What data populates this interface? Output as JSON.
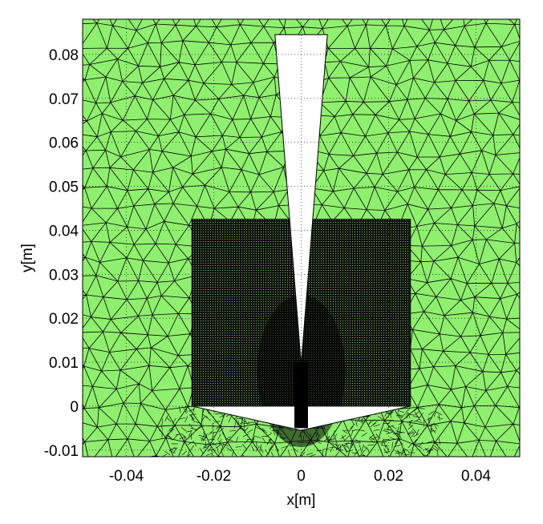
{
  "chart_data": {
    "type": "mesh",
    "title": "",
    "xlabel": "x[m]",
    "ylabel": "y[m]",
    "xlim": [
      -0.05,
      0.05
    ],
    "ylim": [
      -0.0115,
      0.088
    ],
    "xticks": [
      -0.04,
      -0.02,
      0,
      0.02,
      0.04
    ],
    "xtick_labels": [
      "-0.04",
      "-0.02",
      "0",
      "0.02",
      "0.04"
    ],
    "yticks": [
      -0.01,
      0,
      0.01,
      0.02,
      0.03,
      0.04,
      0.05,
      0.06,
      0.07,
      0.08
    ],
    "ytick_labels": [
      "-0.01",
      "0",
      "0.01",
      "0.02",
      "0.03",
      "0.04",
      "0.05",
      "0.06",
      "0.07",
      "0.08"
    ],
    "colors": {
      "mesh_fill": "#8fef6f",
      "mesh_edges": "#000000",
      "void": "#ffffff",
      "grid": "#000000"
    },
    "refined_region": {
      "x": [
        -0.025,
        0.025
      ],
      "y": [
        0.0,
        0.0425
      ]
    },
    "needle_void": {
      "tip": [
        0.0,
        0.0095
      ],
      "top_left": [
        -0.006,
        0.0845
      ],
      "top_right": [
        0.006,
        0.0845
      ]
    },
    "base_void": {
      "points": [
        [
          -0.025,
          0.0
        ],
        [
          0.025,
          0.0
        ],
        [
          0.0,
          -0.0055
        ]
      ]
    },
    "electrode": {
      "x": [
        -0.001,
        0.001
      ],
      "y": [
        -0.005,
        0.01
      ]
    },
    "grid": "dotted"
  }
}
